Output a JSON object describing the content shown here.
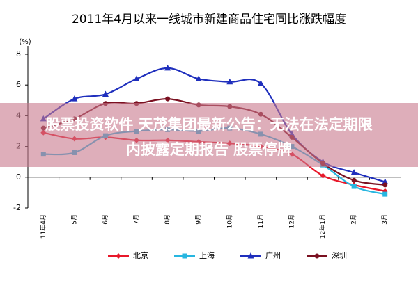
{
  "chart_data": {
    "type": "line",
    "title": "2011年4月以来一线城市新建商品住宅同比涨跌幅度",
    "y_unit": "(%)",
    "categories": [
      "11年4月",
      "5月",
      "6月",
      "7月",
      "8月",
      "9月",
      "10月",
      "11月",
      "12月",
      "12年1月",
      "2月",
      "3月"
    ],
    "series": [
      {
        "name": "北京",
        "color": "#e8182a",
        "marker": "diamond",
        "values": [
          2.9,
          2.5,
          2.6,
          2.4,
          2.4,
          2.3,
          2.2,
          2.0,
          1.5,
          0.1,
          -0.5,
          -0.9
        ]
      },
      {
        "name": "上海",
        "color": "#27b6e0",
        "marker": "square",
        "values": [
          1.5,
          1.6,
          2.7,
          3.0,
          3.1,
          3.0,
          3.2,
          2.8,
          2.0,
          0.8,
          -0.6,
          -1.1
        ]
      },
      {
        "name": "广州",
        "color": "#1f2fbd",
        "marker": "triangle",
        "values": [
          3.8,
          5.1,
          5.4,
          6.4,
          7.1,
          6.4,
          6.2,
          6.1,
          2.8,
          1.0,
          0.3,
          -0.3
        ]
      },
      {
        "name": "深圳",
        "color": "#7a1020",
        "marker": "circle",
        "values": [
          3.2,
          3.8,
          4.8,
          4.8,
          5.1,
          4.7,
          4.6,
          4.1,
          2.6,
          0.9,
          -0.2,
          -0.5
        ]
      }
    ],
    "ylim": [
      -2,
      8
    ],
    "yticks": [
      -2,
      0,
      2,
      4,
      6,
      8
    ],
    "grid": false,
    "legend": "bottom"
  },
  "overlay": {
    "lines": [
      "股票投资软件 天茂集团最新公告：无法在法定期限",
      "内披露定期报告 股票停牌"
    ]
  }
}
